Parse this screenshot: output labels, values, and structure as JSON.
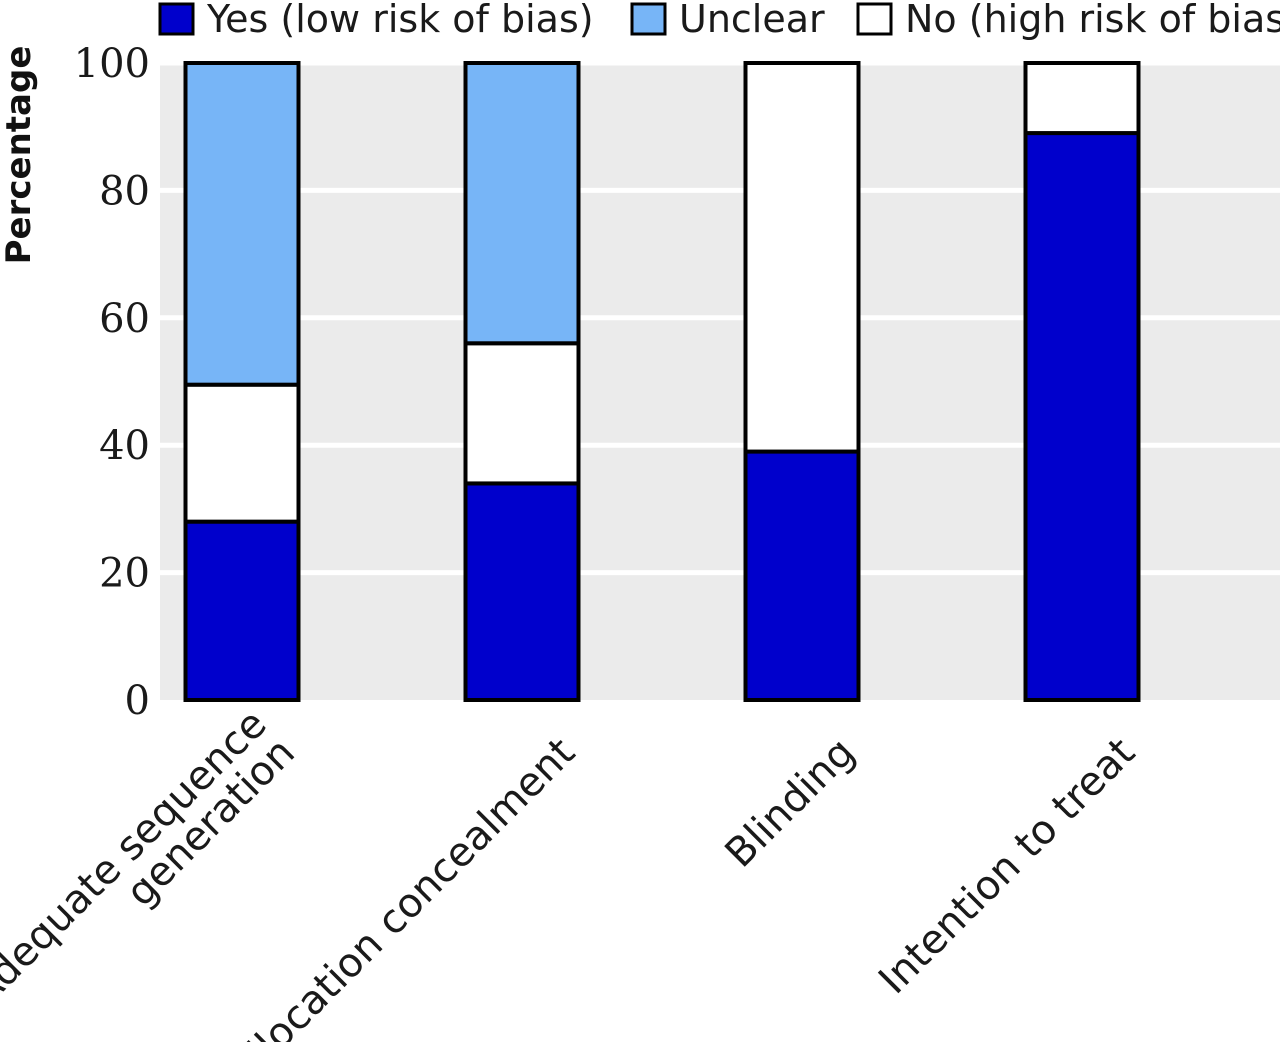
{
  "chart_data": {
    "type": "bar",
    "stacked": true,
    "title": "",
    "xlabel": "",
    "ylabel": "Percentage",
    "ylim": [
      0,
      100
    ],
    "yticks": [
      0,
      20,
      40,
      60,
      80,
      100
    ],
    "grid": true,
    "legend_position": "top",
    "categories": [
      [
        "Adequate sequence",
        "generation"
      ],
      [
        "Allocation concealment"
      ],
      [
        "Blinding"
      ],
      [
        "Intention to treat"
      ]
    ],
    "series": [
      {
        "name": "Yes (low risk of bias)",
        "color": "#0000cc",
        "values": [
          28,
          34,
          39,
          89
        ]
      },
      {
        "name": "No (high risk of bias)",
        "color": "#ffffff",
        "values": [
          21.5,
          22,
          61,
          11
        ]
      },
      {
        "name": "Unclear",
        "color": "#77b5f7",
        "values": [
          50.5,
          44,
          0,
          0
        ]
      }
    ],
    "legend_order": [
      0,
      2,
      1
    ],
    "colors": {
      "plot_background": "#ebebeb",
      "gridline": "#ffffff",
      "bar_outline": "#000000"
    }
  }
}
